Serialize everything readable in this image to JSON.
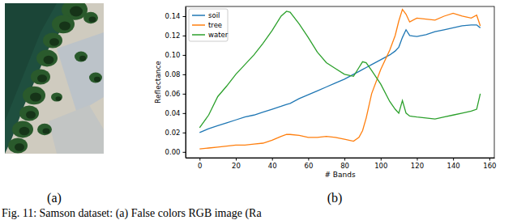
{
  "chart_data": {
    "type": "line",
    "x_label": "# Bands",
    "y_label": "Reflectance",
    "x": [
      0,
      5,
      10,
      15,
      20,
      25,
      30,
      35,
      40,
      45,
      48,
      50,
      55,
      60,
      65,
      70,
      75,
      80,
      85,
      88,
      90,
      92,
      95,
      100,
      105,
      108,
      110,
      112,
      114,
      116,
      120,
      125,
      130,
      135,
      140,
      145,
      150,
      153,
      155
    ],
    "series": [
      {
        "name": "soil",
        "color": "#1f77b4",
        "values": [
          0.02,
          0.024,
          0.027,
          0.03,
          0.033,
          0.036,
          0.038,
          0.041,
          0.044,
          0.047,
          0.049,
          0.05,
          0.055,
          0.059,
          0.063,
          0.067,
          0.071,
          0.075,
          0.08,
          0.083,
          0.085,
          0.087,
          0.09,
          0.095,
          0.1,
          0.104,
          0.108,
          0.118,
          0.126,
          0.12,
          0.119,
          0.121,
          0.124,
          0.126,
          0.128,
          0.13,
          0.131,
          0.131,
          0.128
        ]
      },
      {
        "name": "tree",
        "color": "#ff7f0e",
        "values": [
          0.003,
          0.004,
          0.005,
          0.006,
          0.007,
          0.007,
          0.008,
          0.009,
          0.012,
          0.016,
          0.018,
          0.018,
          0.017,
          0.015,
          0.015,
          0.016,
          0.015,
          0.013,
          0.011,
          0.015,
          0.022,
          0.035,
          0.06,
          0.085,
          0.105,
          0.12,
          0.135,
          0.147,
          0.142,
          0.134,
          0.138,
          0.137,
          0.136,
          0.14,
          0.143,
          0.14,
          0.138,
          0.141,
          0.13
        ]
      },
      {
        "name": "water",
        "color": "#2ca02c",
        "values": [
          0.025,
          0.038,
          0.057,
          0.068,
          0.08,
          0.09,
          0.1,
          0.112,
          0.125,
          0.14,
          0.145,
          0.144,
          0.132,
          0.118,
          0.103,
          0.092,
          0.086,
          0.08,
          0.078,
          0.087,
          0.093,
          0.092,
          0.084,
          0.07,
          0.052,
          0.044,
          0.04,
          0.053,
          0.04,
          0.037,
          0.036,
          0.035,
          0.034,
          0.036,
          0.038,
          0.04,
          0.042,
          0.044,
          0.06
        ]
      }
    ],
    "xlim": [
      -7.75,
      162.75
    ],
    "xticks": [
      0,
      20,
      40,
      60,
      80,
      100,
      120,
      140,
      160
    ],
    "ylim": [
      -0.006,
      0.15
    ],
    "yticks": [
      {
        "value": 0,
        "label": "0.00"
      },
      {
        "value": 0.02,
        "label": "0.02"
      },
      {
        "value": 0.04,
        "label": "0.04"
      },
      {
        "value": 0.06,
        "label": "0.06"
      },
      {
        "value": 0.08,
        "label": "0.08"
      },
      {
        "value": 0.1,
        "label": "0.10"
      },
      {
        "value": 0.12,
        "label": "0.12"
      },
      {
        "value": 0.14,
        "label": "0.14"
      }
    ],
    "legend": "upper left",
    "grid": false
  },
  "image_label": "(a)",
  "chart_label": "(b)",
  "caption": "Fig. 11: Samson dataset: (a) False colors RGB image (Ra"
}
